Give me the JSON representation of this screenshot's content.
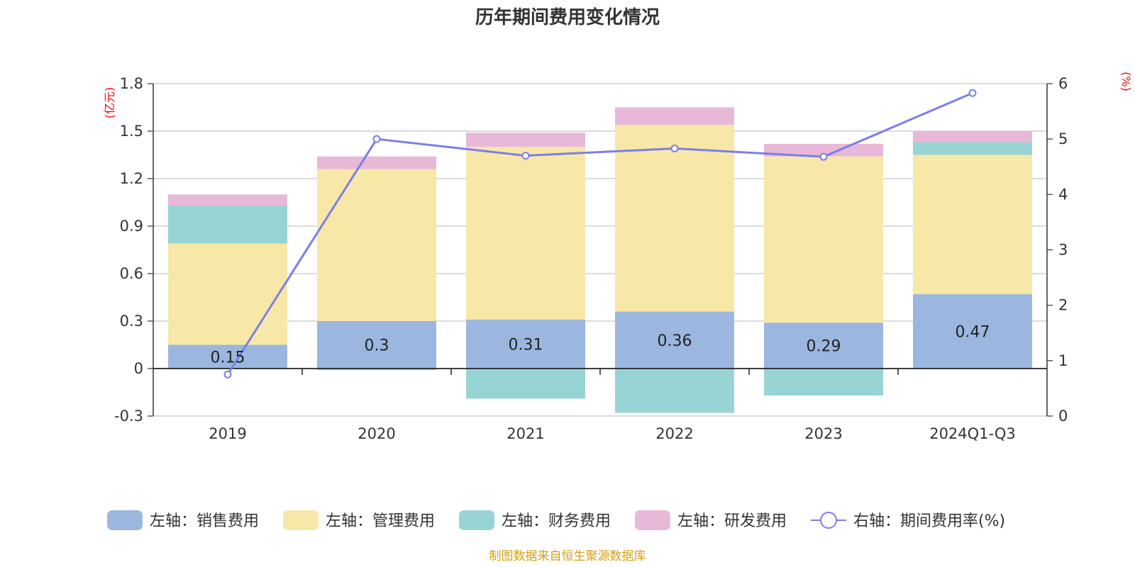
{
  "chart_data": {
    "type": "bar",
    "stacked": true,
    "title": "历年期间费用变化情况",
    "categories": [
      "2019",
      "2020",
      "2021",
      "2022",
      "2023",
      "2024Q1-Q3"
    ],
    "left_axis": {
      "unit": "(亿元)",
      "ylim": [
        -0.3,
        1.8
      ],
      "ticks": [
        -0.3,
        0,
        0.3,
        0.6,
        0.9,
        1.2,
        1.5,
        1.8
      ],
      "tick_labels": [
        "-0.3",
        "0",
        "0.3",
        "0.6",
        "0.9",
        "1.2",
        "1.5",
        "1.8"
      ]
    },
    "right_axis": {
      "unit": "(%)",
      "ylim": [
        0,
        6
      ],
      "ticks": [
        0,
        1,
        2,
        3,
        4,
        5,
        6
      ],
      "tick_labels": [
        "0",
        "1",
        "2",
        "3",
        "4",
        "5",
        "6"
      ]
    },
    "series": [
      {
        "name": "左轴：销售费用",
        "axis": "left",
        "kind": "bar",
        "color": "#9bb7e0",
        "values": [
          0.15,
          0.3,
          0.31,
          0.36,
          0.29,
          0.47
        ],
        "labels": [
          "0.15",
          "0.3",
          "0.31",
          "0.36",
          "0.29",
          "0.47"
        ]
      },
      {
        "name": "左轴：管理费用",
        "axis": "left",
        "kind": "bar",
        "color": "#f8e8a8",
        "values": [
          0.64,
          0.96,
          1.09,
          1.18,
          1.05,
          0.88
        ]
      },
      {
        "name": "左轴：财务费用",
        "axis": "left",
        "kind": "bar",
        "color": "#98d4d4",
        "values": [
          0.24,
          -0.01,
          -0.19,
          -0.28,
          -0.17,
          0.08
        ]
      },
      {
        "name": "左轴：研发费用",
        "axis": "left",
        "kind": "bar",
        "color": "#e8b8d8",
        "values": [
          0.07,
          0.08,
          0.09,
          0.11,
          0.08,
          0.07
        ]
      },
      {
        "name": "右轴：期间费用率(%)",
        "axis": "right",
        "kind": "line",
        "color": "#7b7fe8",
        "values": [
          0.75,
          5.0,
          4.7,
          4.83,
          4.68,
          5.83
        ]
      }
    ]
  },
  "source_note": "制图数据来自恒生聚源数据库"
}
